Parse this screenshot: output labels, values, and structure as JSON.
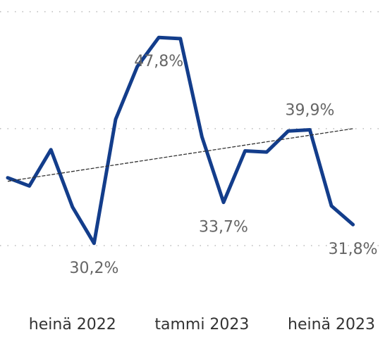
{
  "chart_data": {
    "type": "line",
    "categories": [
      null,
      null,
      null,
      "heinä 2022",
      null,
      null,
      null,
      null,
      null,
      "tammi 2023",
      null,
      null,
      null,
      null,
      null,
      "heinä 2023",
      null
    ],
    "series": [
      {
        "color": "#133d8b",
        "values": [
          35.8,
          35.1,
          38.2,
          33.3,
          30.2,
          40.8,
          45.3,
          47.8,
          47.7,
          39.3,
          33.7,
          38.1,
          38.0,
          39.8,
          39.9,
          33.4,
          31.8
        ],
        "value_labels": [
          null,
          null,
          null,
          null,
          "30,2%",
          null,
          null,
          "47,8%",
          null,
          null,
          "33,7%",
          null,
          null,
          null,
          "39,9%",
          null,
          "31,8%"
        ]
      }
    ],
    "trend_line": [
      35.5,
      40.0
    ],
    "ylim": [
      27,
      51
    ],
    "yticks": [
      30,
      40,
      50
    ],
    "grid": true
  }
}
